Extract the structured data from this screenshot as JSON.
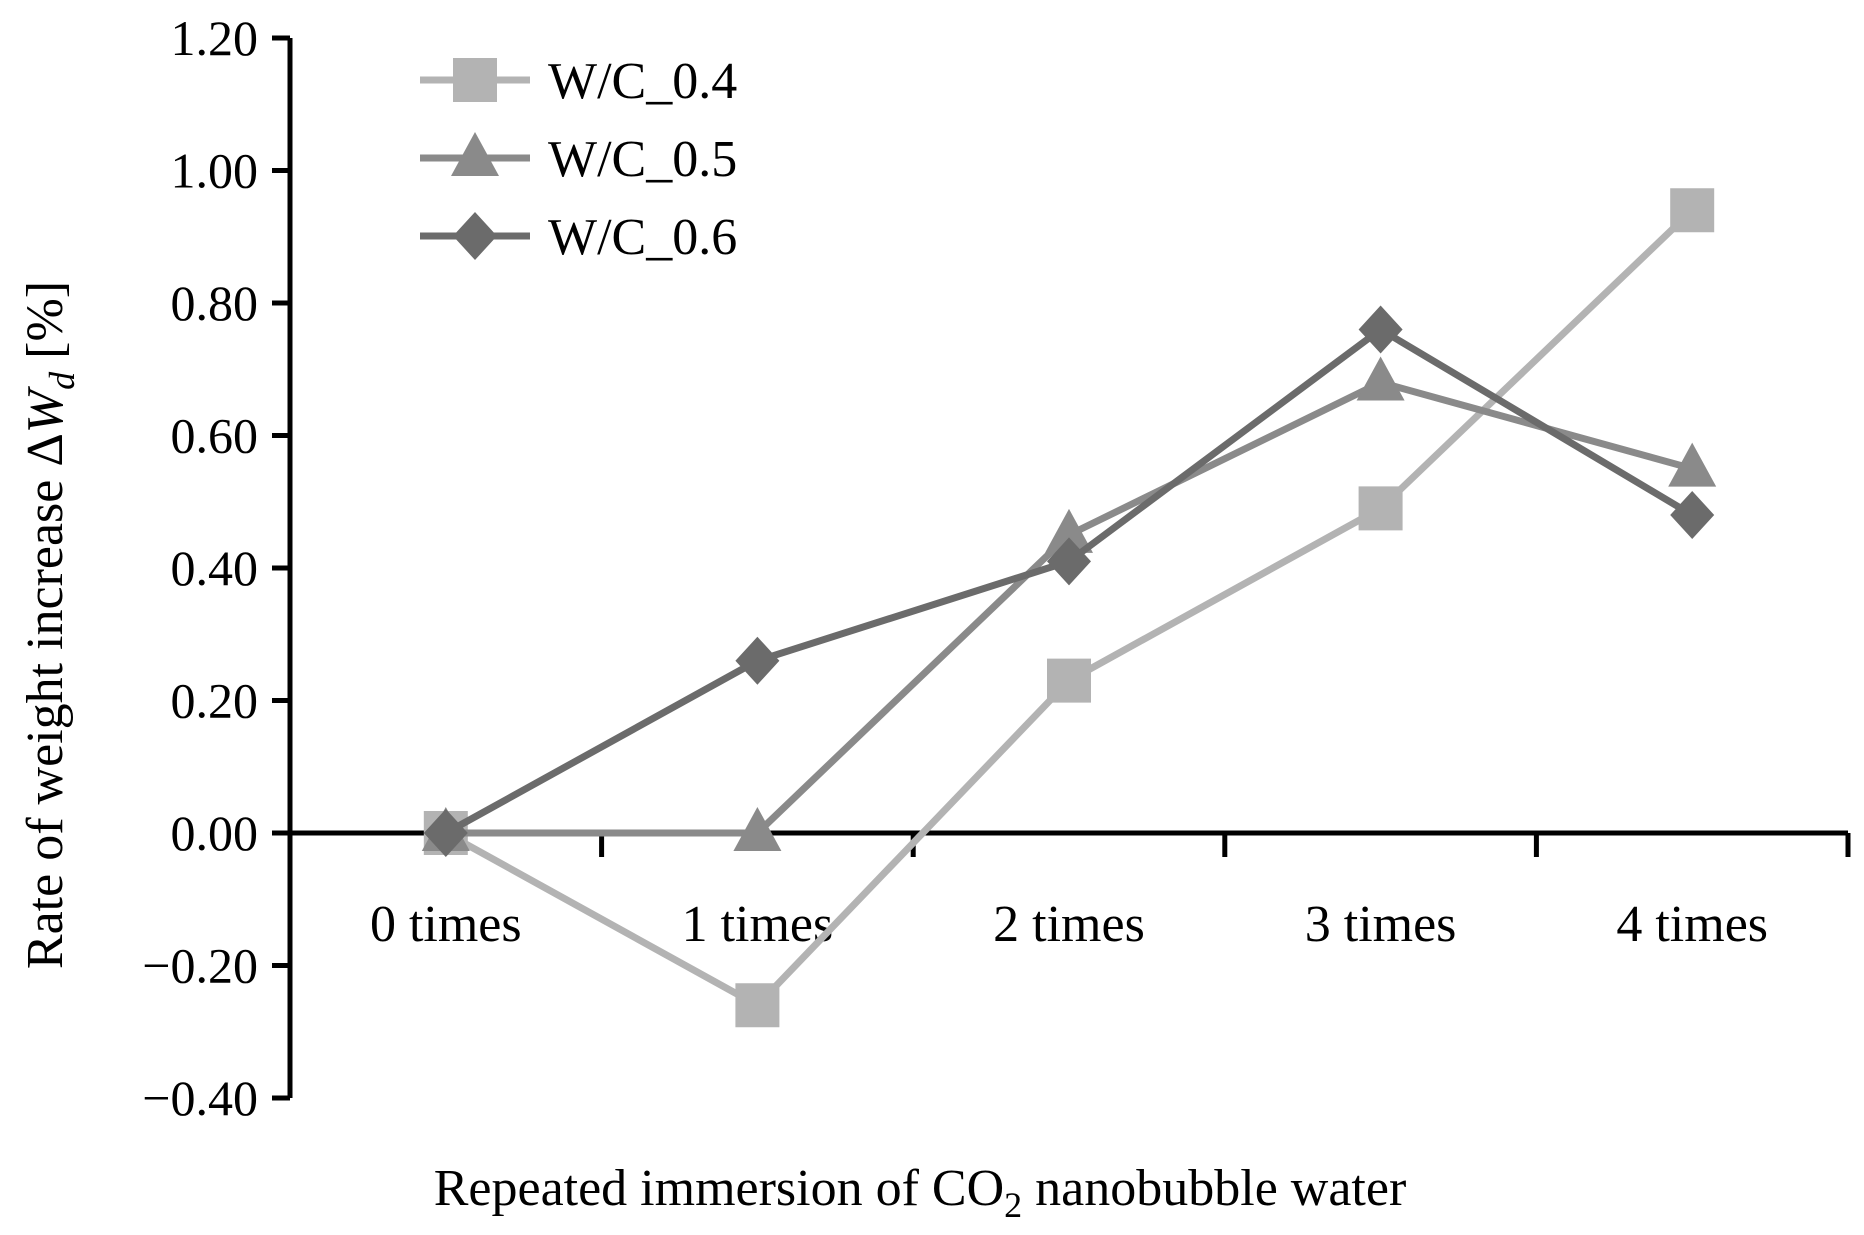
{
  "chart_data": {
    "type": "line",
    "title": "",
    "xlabel": "Repeated immersion of CO",
    "xlabel_subscript": "2",
    "xlabel_suffix": " nanobubble water",
    "ylabel": "Rate of weight increase ΔW",
    "ylabel_italic": "W",
    "ylabel_subscript": "d",
    "ylabel_suffix": " [%]",
    "categories": [
      "0 times",
      "1 times",
      "2 times",
      "3 times",
      "4 times"
    ],
    "ylim": [
      -0.4,
      1.2
    ],
    "yticks": [
      -0.4,
      -0.2,
      0.0,
      0.2,
      0.4,
      0.6,
      0.8,
      1.0,
      1.2
    ],
    "ytick_labels": [
      "−0.40",
      "−0.20",
      "0.00",
      "0.20",
      "0.40",
      "0.60",
      "0.80",
      "1.00",
      "1.20"
    ],
    "grid": false,
    "legend_position": "top-left",
    "series": [
      {
        "name": "W/C_0.4",
        "marker": "square",
        "color": "#b3b3b3",
        "values": [
          0.0,
          -0.26,
          0.23,
          0.49,
          0.94
        ]
      },
      {
        "name": "W/C_0.5",
        "marker": "triangle",
        "color": "#8a8a8a",
        "values": [
          0.0,
          0.0,
          0.45,
          0.68,
          0.55
        ]
      },
      {
        "name": "W/C_0.6",
        "marker": "diamond",
        "color": "#6b6b6b",
        "values": [
          0.0,
          0.26,
          0.41,
          0.76,
          0.48
        ]
      }
    ]
  }
}
